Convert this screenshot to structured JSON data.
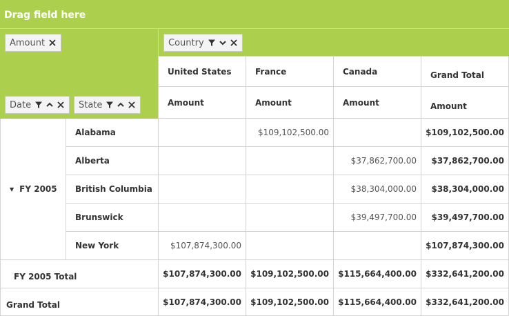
{
  "drag_area": {
    "label": "Drag field here"
  },
  "values_field": {
    "label": "Amount"
  },
  "columns_field": {
    "label": "Country"
  },
  "row_fields": [
    {
      "label": "Date"
    },
    {
      "label": "State"
    }
  ],
  "column_headers": {
    "countries": [
      "United States",
      "France",
      "Canada",
      "Grand Total"
    ],
    "measure": "Amount"
  },
  "row_group": {
    "label": "FY 2005",
    "expanded": true
  },
  "rows": [
    {
      "state": "Alabama",
      "cells": [
        "",
        "$109,102,500.00",
        ""
      ],
      "total": "$109,102,500.00"
    },
    {
      "state": "Alberta",
      "cells": [
        "",
        "",
        "$37,862,700.00"
      ],
      "total": "$37,862,700.00"
    },
    {
      "state": "British Columbia",
      "cells": [
        "",
        "",
        "$38,304,000.00"
      ],
      "total": "$38,304,000.00"
    },
    {
      "state": "Brunswick",
      "cells": [
        "",
        "",
        "$39,497,700.00"
      ],
      "total": "$39,497,700.00"
    },
    {
      "state": "New York",
      "cells": [
        "$107,874,300.00",
        "",
        ""
      ],
      "total": "$107,874,300.00"
    }
  ],
  "subtotal": {
    "label": "FY 2005 Total",
    "cells": [
      "$107,874,300.00",
      "$109,102,500.00",
      "$115,664,400.00"
    ],
    "total": "$332,641,200.00"
  },
  "grand_total": {
    "label": "Grand Total",
    "cells": [
      "$107,874,300.00",
      "$109,102,500.00",
      "$115,664,400.00"
    ],
    "total": "$332,641,200.00"
  },
  "colors": {
    "header_green": "#acd04e",
    "grid_border": "#d3d3d3",
    "chip_bg": "#f4f4f4"
  }
}
